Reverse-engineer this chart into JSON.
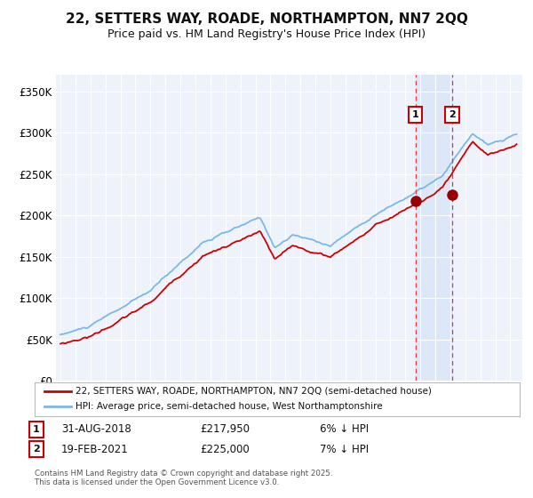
{
  "title": "22, SETTERS WAY, ROADE, NORTHAMPTON, NN7 2QQ",
  "subtitle": "Price paid vs. HM Land Registry's House Price Index (HPI)",
  "title_fontsize": 11,
  "subtitle_fontsize": 9,
  "ylim": [
    0,
    370000
  ],
  "xlim_year": [
    1994.7,
    2025.8
  ],
  "background_color": "#ffffff",
  "plot_bg_color": "#eef3fb",
  "grid_color": "#ffffff",
  "annotation1": {
    "date": 2018.67,
    "price": 217950,
    "label": "1"
  },
  "annotation2": {
    "date": 2021.12,
    "price": 225000,
    "label": "2"
  },
  "sale1_date_str": "31-AUG-2018",
  "sale1_price_str": "£217,950",
  "sale1_note": "6% ↓ HPI",
  "sale2_date_str": "19-FEB-2021",
  "sale2_price_str": "£225,000",
  "sale2_note": "7% ↓ HPI",
  "legend_label1": "22, SETTERS WAY, ROADE, NORTHAMPTON, NN7 2QQ (semi-detached house)",
  "legend_label2": "HPI: Average price, semi-detached house, West Northamptonshire",
  "footer": "Contains HM Land Registry data © Crown copyright and database right 2025.\nThis data is licensed under the Open Government Licence v3.0.",
  "hpi_color": "#7ab8e8",
  "price_color": "#cc0000",
  "marker_color": "#990000",
  "dashed_line_color": "#ee3333",
  "shade_color": "#dce8f8",
  "ytick_labels": [
    "£0",
    "£50K",
    "£100K",
    "£150K",
    "£200K",
    "£250K",
    "£300K",
    "£350K"
  ],
  "ytick_values": [
    0,
    50000,
    100000,
    150000,
    200000,
    250000,
    300000,
    350000
  ],
  "box_color": "#cc0000"
}
